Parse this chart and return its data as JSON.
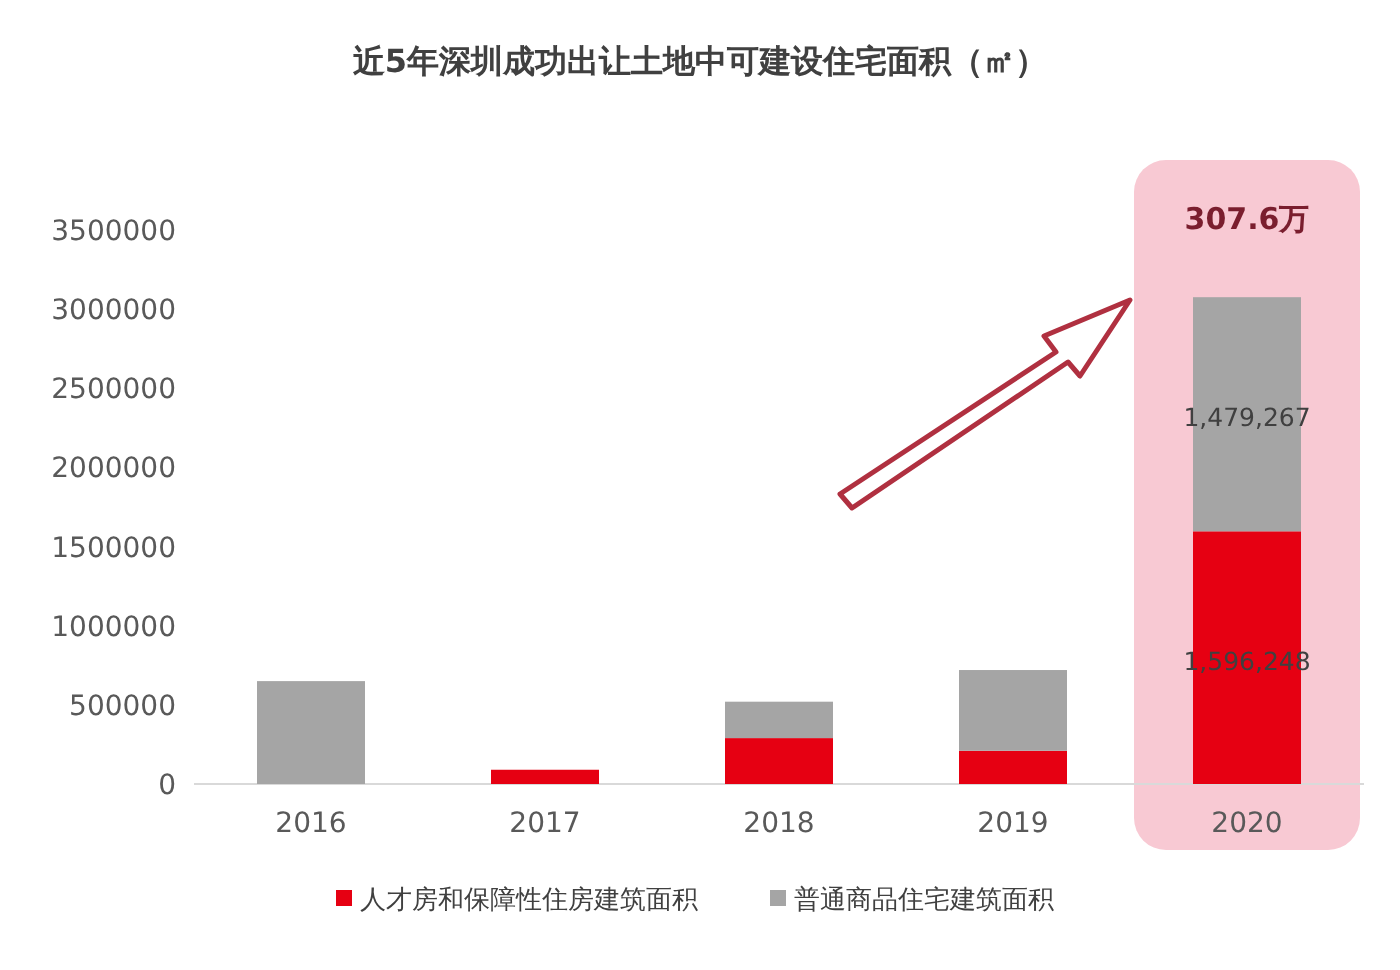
{
  "chart_data": {
    "type": "bar",
    "stacked": true,
    "title": "近5年深圳成功出让土地中可建设住宅面积（㎡）",
    "categories": [
      "2016",
      "2017",
      "2018",
      "2019",
      "2020"
    ],
    "series": [
      {
        "name": "人才房和保障性住房建筑面积",
        "color": "#e60012",
        "values": [
          0,
          90000,
          290000,
          210000,
          1596248
        ],
        "value_labels": [
          null,
          null,
          null,
          null,
          "1,596,248"
        ]
      },
      {
        "name": "普通商品住宅建筑面积",
        "color": "#a5a5a5",
        "values": [
          650000,
          0,
          230000,
          510000,
          1479267
        ],
        "value_labels": [
          null,
          null,
          null,
          null,
          "1,479,267"
        ]
      }
    ],
    "ylim": [
      0,
      3500000
    ],
    "yticks": [
      0,
      500000,
      1000000,
      1500000,
      2000000,
      2500000,
      3000000,
      3500000
    ],
    "grid": false,
    "legend": "bottom",
    "bands": [
      {
        "axis": "x",
        "from": "2020",
        "to": "2020",
        "color": "#f8c9d3"
      }
    ],
    "annotations": [
      {
        "text": "307.6万",
        "x": "2020",
        "y": 3075515
      }
    ]
  }
}
